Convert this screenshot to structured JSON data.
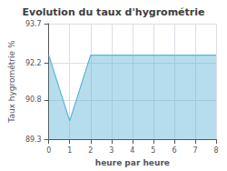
{
  "chart_data": {
    "type": "area",
    "title": "Evolution du taux d'hygrométrie",
    "xlabel": "heure par heure",
    "ylabel": "Taux hygrométrie %",
    "x": [
      0,
      1,
      2,
      3,
      4,
      5,
      6,
      7,
      8
    ],
    "values": [
      92.5,
      90.0,
      92.5,
      92.5,
      92.5,
      92.5,
      92.5,
      92.5,
      92.5
    ],
    "color": "#5ab4d6",
    "xlim": [
      0,
      8
    ],
    "xticks": [
      0,
      1,
      2,
      3,
      4,
      5,
      6,
      7,
      8
    ],
    "ylim": [
      89.3,
      93.7
    ],
    "yticks": [
      89.3,
      90.8,
      92.2,
      93.7
    ],
    "grid": true
  }
}
